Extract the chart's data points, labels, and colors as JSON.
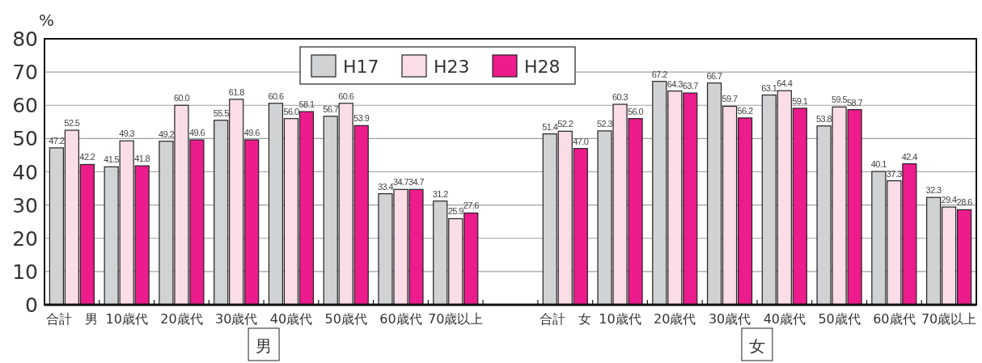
{
  "chart_data": {
    "type": "bar",
    "ylabel": "%",
    "categories": [
      "合計　男",
      "10歳代",
      "20歳代",
      "30歳代",
      "40歳代",
      "50歳代",
      "60歳代",
      "70歳以上",
      null,
      "合計　女",
      "10歳代",
      "20歳代",
      "30歳代",
      "40歳代",
      "50歳代",
      "60歳代",
      "70歳以上"
    ],
    "series": [
      {
        "name": "H17",
        "color": "#d1d2d4",
        "values": [
          47.2,
          41.5,
          49.2,
          55.5,
          60.6,
          56.7,
          33.4,
          31.2,
          null,
          51.4,
          52.3,
          67.2,
          66.7,
          63.1,
          53.8,
          40.1,
          32.3
        ],
        "value_labels": [
          "47.2",
          "41.5",
          "49.2",
          "55.5",
          "60.6",
          "56.7",
          "33.4",
          "31.2",
          null,
          "51.4",
          "52.3",
          "67.2",
          "66.7",
          "63.1",
          "53.8",
          "40.1",
          "32.3"
        ]
      },
      {
        "name": "H23",
        "color": "#fbdde8",
        "values": [
          52.5,
          49.3,
          60.0,
          61.8,
          56.0,
          60.6,
          34.7,
          25.9,
          null,
          52.2,
          60.3,
          64.3,
          59.7,
          64.4,
          59.5,
          37.3,
          29.4
        ],
        "value_labels": [
          "52.5",
          "49.3",
          "60.0",
          "61.8",
          "56.0",
          "60.6",
          "34.7",
          "25.9",
          null,
          "52.2",
          "60.3",
          "64.3",
          "59.7",
          "64.4",
          "59.5",
          "37.3",
          "29.4"
        ]
      },
      {
        "name": "H28",
        "color": "#ec1c8c",
        "values": [
          42.2,
          41.8,
          49.6,
          49.6,
          58.1,
          53.9,
          34.7,
          27.6,
          null,
          47.0,
          56.0,
          63.7,
          56.2,
          59.1,
          58.7,
          42.4,
          28.6
        ],
        "value_labels": [
          "42.2",
          "41.8",
          "49.6",
          "49.6",
          "58.1",
          "53.9",
          "34.7",
          "27.6",
          null,
          "47.0",
          "56.0",
          "63.7",
          "56.2",
          "59.1",
          "58.7",
          "42.4",
          "28.6"
        ]
      }
    ],
    "ylim": [
      0,
      80
    ],
    "yticks": [
      0,
      10,
      20,
      30,
      40,
      50,
      60,
      70,
      80
    ],
    "grid": "y",
    "legend": "top",
    "annotations": [
      "男",
      "女"
    ]
  }
}
